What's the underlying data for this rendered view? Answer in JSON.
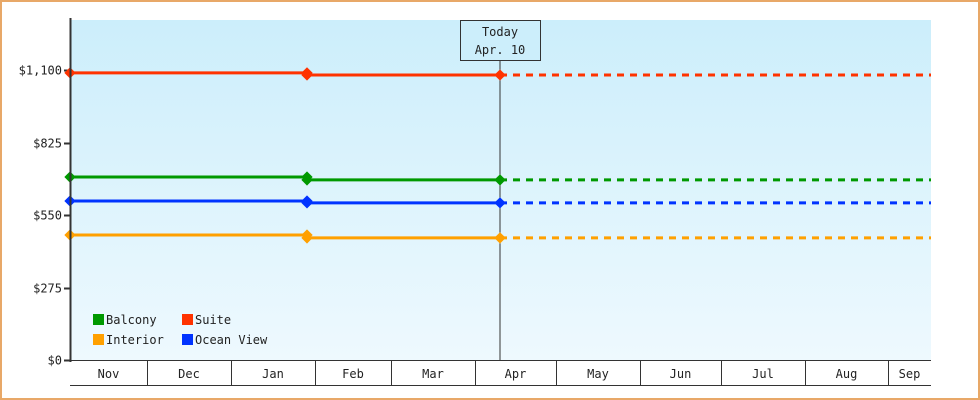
{
  "chart_data": {
    "type": "line",
    "title": "",
    "xlabel": "",
    "ylabel": "",
    "ylim": [
      0,
      1100
    ],
    "y_ticks": [
      {
        "value": 0,
        "label": "$0"
      },
      {
        "value": 275,
        "label": "$275"
      },
      {
        "value": 550,
        "label": "$550"
      },
      {
        "value": 825,
        "label": "$825"
      },
      {
        "value": 1100,
        "label": "$1,100"
      }
    ],
    "x_months": [
      {
        "label": "Nov",
        "start": 70,
        "end": 147
      },
      {
        "label": "Dec",
        "start": 147,
        "end": 231
      },
      {
        "label": "Jan",
        "start": 231,
        "end": 315
      },
      {
        "label": "Feb",
        "start": 315,
        "end": 391
      },
      {
        "label": "Mar",
        "start": 391,
        "end": 475
      },
      {
        "label": "Apr",
        "start": 475,
        "end": 556
      },
      {
        "label": "May",
        "start": 556,
        "end": 640
      },
      {
        "label": "Jun",
        "start": 640,
        "end": 721
      },
      {
        "label": "Jul",
        "start": 721,
        "end": 805
      },
      {
        "label": "Aug",
        "start": 805,
        "end": 888
      },
      {
        "label": "Sep",
        "start": 888,
        "end": 931
      }
    ],
    "x": [
      "Nov 1",
      "Jan 28",
      "Apr 10"
    ],
    "series": [
      {
        "name": "Suite",
        "color": "#FF3300",
        "values": [
          1089,
          1089,
          1081
        ],
        "forecast": 1081
      },
      {
        "name": "Balcony",
        "color": "#009900",
        "values": [
          694,
          694,
          683
        ],
        "forecast": 683
      },
      {
        "name": "Ocean View",
        "color": "#0033FF",
        "values": [
          603,
          603,
          596
        ],
        "forecast": 596
      },
      {
        "name": "Interior",
        "color": "#FFA000",
        "values": [
          474,
          474,
          463
        ],
        "forecast": 463
      }
    ],
    "point_x": [
      70,
      307,
      500
    ],
    "annotation": {
      "line1": "Today",
      "line2": "Apr. 10",
      "x": 500
    },
    "legend": {
      "position": "lower-left",
      "items": [
        {
          "name": "Balcony",
          "color": "#009900"
        },
        {
          "name": "Suite",
          "color": "#FF3300"
        },
        {
          "name": "Interior",
          "color": "#FFA000"
        },
        {
          "name": "Ocean View",
          "color": "#0033FF"
        }
      ]
    },
    "grid": false
  },
  "colors": {
    "frame_border": "#E8A868",
    "plot_top": "#CCEEFB",
    "plot_bottom": "#EEF9FE",
    "axis": "#333333"
  }
}
